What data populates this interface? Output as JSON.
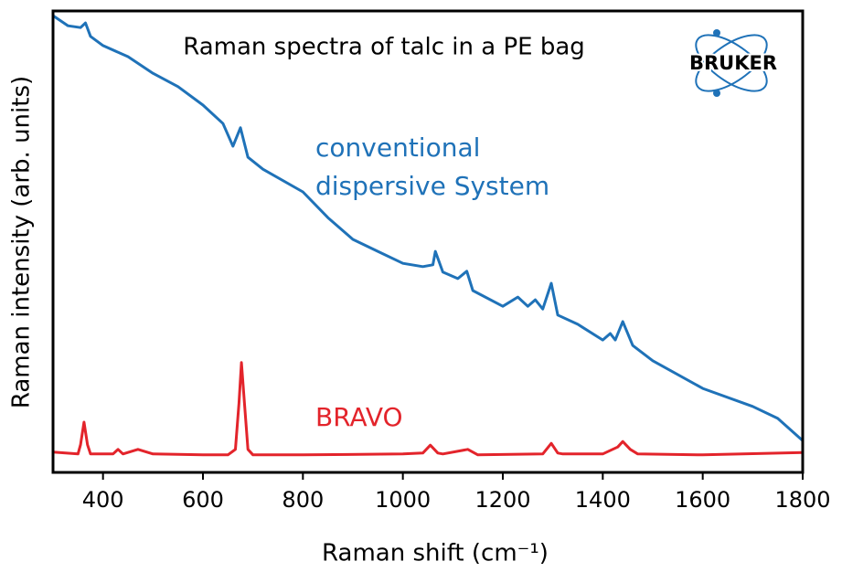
{
  "chart_data": {
    "type": "line",
    "title": "Raman spectra of talc in a PE bag",
    "logo": "BRUKER",
    "xlabel": "Raman shift (cm⁻¹)",
    "ylabel": "Raman intensity (arb. units)",
    "annotations": [
      {
        "lines": [
          "conventional",
          "dispersive System"
        ],
        "color": "#1f72b8"
      },
      {
        "lines": [
          "BRAVO"
        ],
        "color": "#e3242b"
      }
    ],
    "xlim": [
      300,
      1800
    ],
    "xticks": [
      400,
      600,
      800,
      1000,
      1200,
      1400,
      1600,
      1800
    ],
    "ylim": [
      0,
      100
    ],
    "series": [
      {
        "name": "conventional dispersive System",
        "color": "#1f72b8",
        "x": [
          300,
          330,
          355,
          365,
          375,
          400,
          450,
          500,
          550,
          600,
          640,
          660,
          675,
          690,
          720,
          800,
          850,
          900,
          950,
          1000,
          1040,
          1060,
          1065,
          1080,
          1110,
          1128,
          1140,
          1200,
          1230,
          1250,
          1265,
          1280,
          1297,
          1310,
          1350,
          1400,
          1415,
          1425,
          1440,
          1460,
          1500,
          1600,
          1700,
          1750,
          1800
        ],
        "values": [
          99.0,
          96.8,
          96.4,
          97.4,
          94.5,
          92.5,
          90.1,
          86.5,
          83.6,
          79.6,
          75.6,
          70.7,
          74.7,
          68.3,
          65.7,
          60.8,
          55.2,
          50.5,
          47.9,
          45.3,
          44.6,
          45.0,
          47.9,
          43.4,
          42.0,
          43.6,
          39.4,
          36.0,
          38.0,
          36.0,
          37.4,
          35.4,
          41.0,
          34.1,
          32.1,
          28.7,
          30.1,
          28.7,
          32.7,
          27.5,
          24.2,
          18.2,
          14.3,
          11.7,
          6.9
        ]
      },
      {
        "name": "BRAVO",
        "color": "#e3242b",
        "x": [
          300,
          350,
          355,
          362,
          369,
          375,
          420,
          430,
          440,
          470,
          500,
          600,
          650,
          665,
          672,
          677,
          683,
          690,
          700,
          800,
          1000,
          1040,
          1055,
          1070,
          1080,
          1130,
          1150,
          1280,
          1297,
          1310,
          1320,
          1400,
          1430,
          1440,
          1455,
          1470,
          1600,
          1800
        ],
        "values": [
          4.4,
          4.0,
          6.0,
          10.9,
          6.0,
          4.0,
          4.0,
          5.0,
          4.0,
          5.0,
          4.0,
          3.8,
          3.8,
          5.0,
          15.0,
          23.8,
          15.0,
          5.0,
          3.8,
          3.8,
          4.0,
          4.2,
          5.9,
          4.2,
          4.0,
          5.0,
          3.8,
          4.0,
          6.3,
          4.2,
          4.0,
          4.0,
          5.5,
          6.7,
          5.0,
          4.0,
          3.8,
          4.3
        ]
      }
    ]
  }
}
